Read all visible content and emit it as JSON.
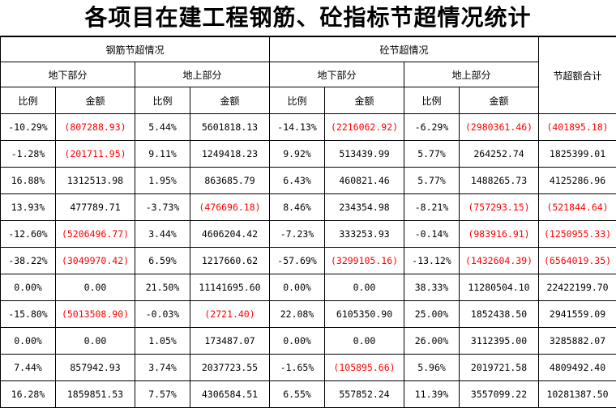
{
  "title": "各项目在建工程钢筋、砼指标节超情况统计",
  "headers": {
    "steel": "钢筋节超情况",
    "concrete": "砼节超情况",
    "total": "节超额合计",
    "underground": "地下部分",
    "aboveground": "地上部分",
    "ratio": "比例",
    "amount": "金额"
  },
  "neg_color": "#ff0000",
  "rows": [
    {
      "c": [
        "-10.29%",
        "(807288.93)",
        "5.44%",
        "5601818.13",
        "-14.13%",
        "(2216062.92)",
        "-6.29%",
        "(2980361.46)",
        "(401895.18)"
      ]
    },
    {
      "c": [
        "-1.28%",
        "(201711.95)",
        "9.11%",
        "1249418.23",
        "9.92%",
        "513439.99",
        "5.77%",
        "264252.74",
        "1825399.01"
      ]
    },
    {
      "c": [
        "16.88%",
        "1312513.98",
        "1.95%",
        "863685.79",
        "6.43%",
        "460821.46",
        "5.77%",
        "1488265.73",
        "4125286.96"
      ]
    },
    {
      "c": [
        "13.93%",
        "477789.71",
        "-3.73%",
        "(476696.18)",
        "8.46%",
        "234354.98",
        "-8.21%",
        "(757293.15)",
        "(521844.64)"
      ]
    },
    {
      "c": [
        "-12.60%",
        "(5206496.77)",
        "3.44%",
        "4606204.42",
        "-7.23%",
        "333253.93",
        "-0.14%",
        "(983916.91)",
        "(1250955.33)"
      ]
    },
    {
      "c": [
        "-38.22%",
        "(3049970.42)",
        "6.59%",
        "1217660.62",
        "-57.69%",
        "(3299105.16)",
        "-13.12%",
        "(1432604.39)",
        "(6564019.35)"
      ]
    },
    {
      "c": [
        "0.00%",
        "0.00",
        "21.50%",
        "11141695.60",
        "0.00%",
        "0.00",
        "38.33%",
        "11280504.10",
        "22422199.70"
      ]
    },
    {
      "c": [
        "-15.80%",
        "(5013508.90)",
        "-0.03%",
        "(2721.40)",
        "22.08%",
        "6105350.90",
        "25.00%",
        "1852438.50",
        "2941559.09"
      ]
    },
    {
      "c": [
        "0.00%",
        "0.00",
        "1.05%",
        "173487.07",
        "0.00%",
        "0.00",
        "26.00%",
        "3112395.00",
        "3285882.07"
      ]
    },
    {
      "c": [
        "7.44%",
        "857942.93",
        "3.74%",
        "2037723.55",
        "-1.65%",
        "(105895.66)",
        "5.96%",
        "2019721.58",
        "4809492.40"
      ]
    },
    {
      "c": [
        "16.28%",
        "1859851.53",
        "7.57%",
        "4306584.51",
        "6.55%",
        "557852.24",
        "11.39%",
        "3557099.22",
        "10281387.50"
      ]
    }
  ]
}
